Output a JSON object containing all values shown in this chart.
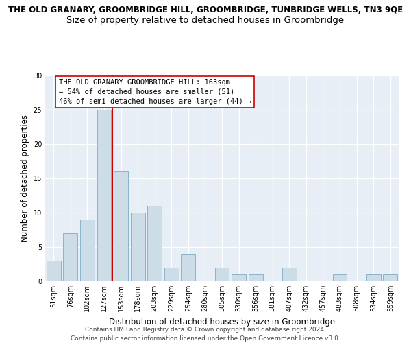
{
  "title": "THE OLD GRANARY, GROOMBRIDGE HILL, GROOMBRIDGE, TUNBRIDGE WELLS, TN3 9QE",
  "subtitle": "Size of property relative to detached houses in Groombridge",
  "xlabel": "Distribution of detached houses by size in Groombridge",
  "ylabel": "Number of detached properties",
  "categories": [
    "51sqm",
    "76sqm",
    "102sqm",
    "127sqm",
    "153sqm",
    "178sqm",
    "203sqm",
    "229sqm",
    "254sqm",
    "280sqm",
    "305sqm",
    "330sqm",
    "356sqm",
    "381sqm",
    "407sqm",
    "432sqm",
    "457sqm",
    "483sqm",
    "508sqm",
    "534sqm",
    "559sqm"
  ],
  "values": [
    3,
    7,
    9,
    25,
    16,
    10,
    11,
    2,
    4,
    0,
    2,
    1,
    1,
    0,
    2,
    0,
    0,
    1,
    0,
    1,
    1
  ],
  "bar_color": "#ccdde8",
  "bar_edge_color": "#8ab4cc",
  "vline_color": "#cc0000",
  "annotation_text": "THE OLD GRANARY GROOMBRIDGE HILL: 163sqm\n← 54% of detached houses are smaller (51)\n46% of semi-detached houses are larger (44) →",
  "annotation_box_facecolor": "#ffffff",
  "annotation_box_edgecolor": "#cc0000",
  "ylim": [
    0,
    30
  ],
  "yticks": [
    0,
    5,
    10,
    15,
    20,
    25,
    30
  ],
  "footer_line1": "Contains HM Land Registry data © Crown copyright and database right 2024.",
  "footer_line2": "Contains public sector information licensed under the Open Government Licence v3.0.",
  "bg_color": "#e8eef5",
  "title_fontsize": 8.5,
  "subtitle_fontsize": 9.5,
  "xlabel_fontsize": 8.5,
  "ylabel_fontsize": 8.5,
  "tick_fontsize": 7,
  "annotation_fontsize": 7.5,
  "footer_fontsize": 6.5
}
